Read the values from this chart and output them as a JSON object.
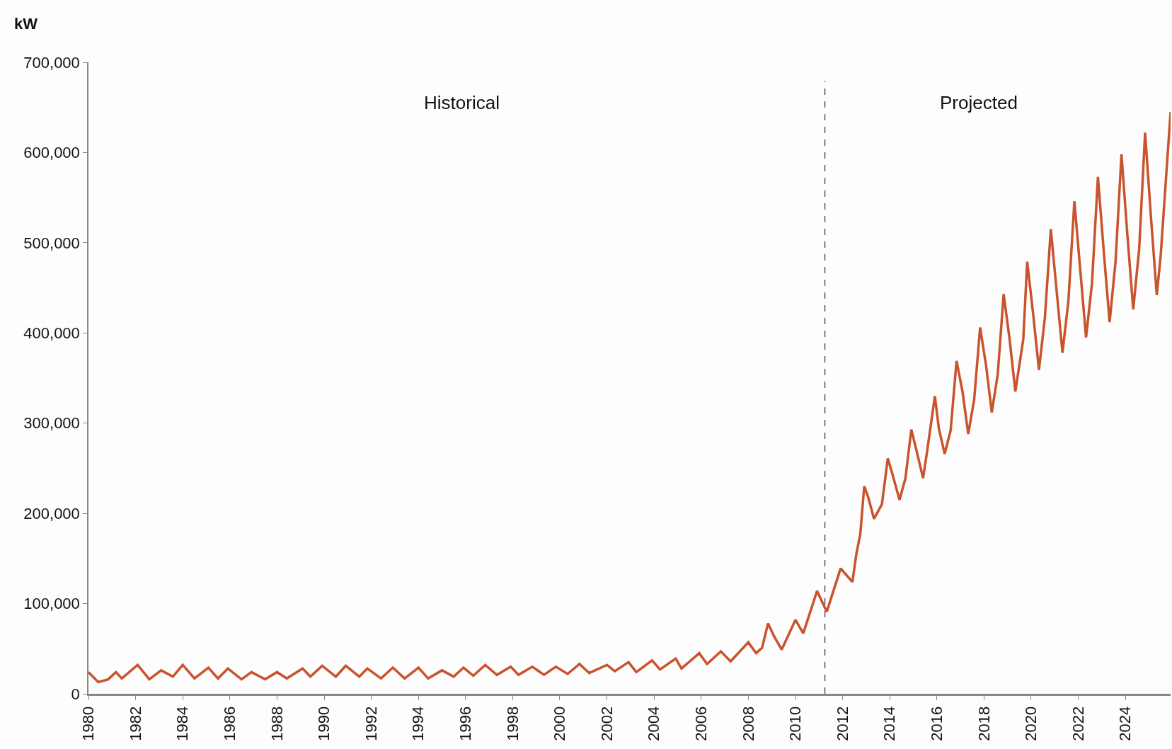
{
  "chart_data": {
    "type": "line",
    "ylabel": "kW",
    "x": [
      "1980-01",
      "1980-06",
      "1980-11",
      "1981-03",
      "1981-06",
      "1982-02",
      "1982-08",
      "1983-02",
      "1983-08",
      "1984-01",
      "1984-07",
      "1985-02",
      "1985-07",
      "1985-12",
      "1986-07",
      "1986-12",
      "1987-07",
      "1988-01",
      "1988-06",
      "1989-02",
      "1989-06",
      "1989-12",
      "1990-07",
      "1990-12",
      "1991-07",
      "1991-11",
      "1992-06",
      "1992-12",
      "1993-06",
      "1994-01",
      "1994-06",
      "1995-01",
      "1995-07",
      "1995-12",
      "1996-05",
      "1996-11",
      "1997-05",
      "1997-12",
      "1998-04",
      "1998-11",
      "1999-05",
      "1999-11",
      "2000-05",
      "2000-11",
      "2001-04",
      "2002-01",
      "2002-05",
      "2002-12",
      "2003-04",
      "2003-12",
      "2004-04",
      "2004-12",
      "2005-03",
      "2005-12",
      "2006-04",
      "2006-11",
      "2007-04",
      "2008-01",
      "2008-05",
      "2008-08",
      "2008-11",
      "2009-02",
      "2009-06",
      "2010-01",
      "2010-05",
      "2010-12",
      "2011-03",
      "2011-05",
      "2011-12",
      "2012-06",
      "2012-08",
      "2012-10",
      "2012-12",
      "2013-02",
      "2013-05",
      "2013-09",
      "2013-12",
      "2014-02",
      "2014-06",
      "2014-09",
      "2014-12",
      "2015-02",
      "2015-06",
      "2015-08",
      "2015-12",
      "2016-02",
      "2016-05",
      "2016-08",
      "2016-11",
      "2017-02",
      "2017-05",
      "2017-08",
      "2017-11",
      "2018-02",
      "2018-05",
      "2018-08",
      "2018-11",
      "2019-02",
      "2019-05",
      "2019-09",
      "2019-11",
      "2020-02",
      "2020-05",
      "2020-08",
      "2020-11",
      "2021-02",
      "2021-05",
      "2021-08",
      "2021-11",
      "2022-02",
      "2022-05",
      "2022-08",
      "2022-11",
      "2023-02",
      "2023-05",
      "2023-08",
      "2023-11",
      "2024-02",
      "2024-05",
      "2024-08",
      "2024-11",
      "2025-02",
      "2025-05",
      "2025-07",
      "2025-12"
    ],
    "series": [
      {
        "color": "#c9532c",
        "values": [
          24000,
          13000,
          16000,
          24000,
          17000,
          32000,
          16000,
          26000,
          19000,
          32000,
          17000,
          29000,
          17000,
          28000,
          16000,
          24000,
          16000,
          24000,
          17000,
          28000,
          19000,
          31000,
          19000,
          31000,
          19000,
          28000,
          17000,
          29000,
          17000,
          29000,
          17000,
          26000,
          19000,
          29000,
          20000,
          32000,
          21000,
          30000,
          21000,
          30000,
          21000,
          30000,
          22000,
          33000,
          23000,
          32000,
          25000,
          35000,
          24000,
          37000,
          27000,
          39000,
          28000,
          45000,
          33000,
          47000,
          36000,
          57000,
          45000,
          51000,
          78000,
          64000,
          49000,
          82000,
          67000,
          114000,
          100000,
          91000,
          139000,
          124000,
          155000,
          177000,
          230000,
          218000,
          194000,
          210000,
          261000,
          246000,
          215000,
          239000,
          293000,
          275000,
          239000,
          268000,
          330000,
          294000,
          266000,
          292000,
          369000,
          335000,
          288000,
          326000,
          406000,
          364000,
          312000,
          354000,
          443000,
          393000,
          335000,
          393000,
          479000,
          421000,
          359000,
          417000,
          515000,
          445000,
          378000,
          436000,
          546000,
          469000,
          395000,
          455000,
          573000,
          489000,
          412000,
          479000,
          598000,
          508000,
          426000,
          493000,
          622000,
          527000,
          442000,
          486000,
          645000
        ]
      }
    ],
    "xlim": [
      "1980-01-01",
      "2025-12-01"
    ],
    "xticks": [
      "1980",
      "1982",
      "1984",
      "1986",
      "1988",
      "1990",
      "1992",
      "1994",
      "1996",
      "1998",
      "2000",
      "2002",
      "2004",
      "2006",
      "2008",
      "2010",
      "2012",
      "2014",
      "2016",
      "2018",
      "2020",
      "2022",
      "2024"
    ],
    "ylim": [
      0,
      700000
    ],
    "yticks": [
      0,
      {
        "value": 100000,
        "label": "100,000"
      },
      {
        "value": 200000,
        "label": "200,000"
      },
      {
        "value": 300000,
        "label": "300,000"
      },
      {
        "value": 400000,
        "label": "400,000"
      },
      {
        "value": 500000,
        "label": "500,000"
      },
      {
        "value": 600000,
        "label": "600,000"
      },
      {
        "value": 700000,
        "label": "700,000"
      }
    ],
    "ref_lines": [
      {
        "axis": "x",
        "value": "2011-04",
        "color": "#555555",
        "line_style": "dashed"
      }
    ],
    "annotations": [
      "Historical",
      "Projected"
    ],
    "marker": "none",
    "line_style": "solid"
  }
}
